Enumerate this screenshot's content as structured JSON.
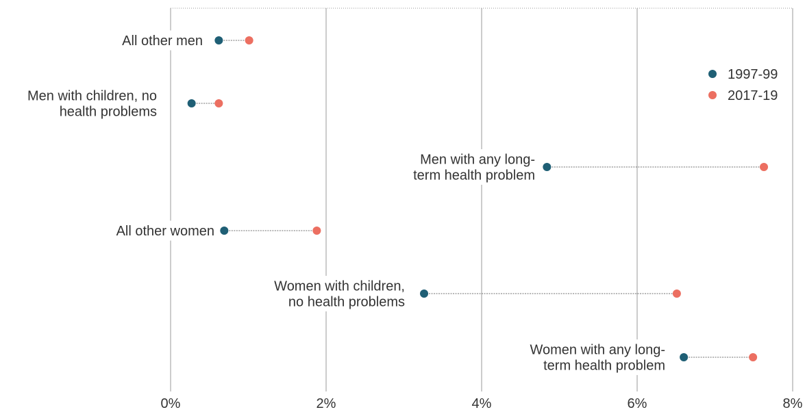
{
  "chart_data": {
    "type": "dot",
    "x_ticks": [
      "0%",
      "2%",
      "4%",
      "6%",
      "8%"
    ],
    "xlim": [
      0,
      8
    ],
    "grid": true,
    "legend_position": "top-right",
    "series": [
      {
        "name": "1997-99",
        "color": "#1f5f75"
      },
      {
        "name": "2017-19",
        "color": "#ec6f61"
      }
    ],
    "categories": [
      {
        "label": [
          "All other men"
        ],
        "label_side": "left",
        "v1997": 0.62,
        "v2017": 1.01
      },
      {
        "label": [
          "Men with children, no",
          "health problems"
        ],
        "label_side": "far-left",
        "v1997": 0.27,
        "v2017": 0.62
      },
      {
        "label": [
          "Men with any long-",
          "term health problem"
        ],
        "label_side": "left",
        "v1997": 4.84,
        "v2017": 7.63
      },
      {
        "label": [
          "All other women"
        ],
        "label_side": "left",
        "v1997": 0.69,
        "v2017": 1.88
      },
      {
        "label": [
          "Women with children,",
          "no health problems"
        ],
        "label_side": "left",
        "v1997": 3.26,
        "v2017": 6.51
      },
      {
        "label": [
          "Women with any long-",
          "term health problem"
        ],
        "label_side": "left",
        "v1997": 6.6,
        "v2017": 7.49
      }
    ]
  }
}
